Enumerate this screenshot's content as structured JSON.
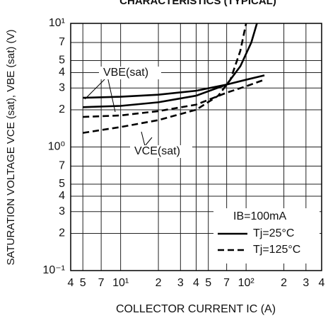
{
  "chart_data": {
    "type": "line",
    "title": "CHARACTERISTICS (TYPICAL)",
    "x_label": "COLLECTOR CURRENT   IC (A)",
    "y_label": "SATURATION VOLTAGE   VCE (sat),  VBE (sat)  (V)",
    "log_x": true,
    "log_y": true,
    "grid": true,
    "xlim": [
      4,
      400
    ],
    "xticks": [
      4,
      5,
      7,
      {
        "value": 10,
        "label": "10¹"
      },
      20,
      30,
      40,
      50,
      70,
      {
        "value": 100,
        "label": "10²"
      },
      200,
      300,
      400
    ],
    "xtick_labels": [
      "4",
      "5",
      "7",
      "10¹",
      "2",
      "3",
      "4",
      "5",
      "7",
      "10²",
      "2",
      "3",
      "4"
    ],
    "ylim": [
      0.1,
      10
    ],
    "yticks": [
      {
        "value": 0.1,
        "label": "10⁻¹"
      },
      0.2,
      0.3,
      0.4,
      0.5,
      0.7,
      {
        "value": 1,
        "label": "10⁰"
      },
      2,
      3,
      4,
      5,
      7,
      {
        "value": 10,
        "label": "10¹"
      }
    ],
    "ytick_labels": [
      "10⁻¹",
      "2",
      "3",
      "4",
      "5",
      "7",
      "10⁰",
      "2",
      "3",
      "4",
      "5",
      "7",
      "10¹"
    ],
    "annotations": [
      "VBE(sat)",
      "VCE(sat)"
    ],
    "legend_title": "IB=100mA",
    "legend": "lower right",
    "series": [
      {
        "name": "Tj=25°C",
        "color": "#000000",
        "dash": "solid",
        "x": [
          5,
          10,
          20,
          40,
          70,
          100,
          140
        ],
        "values": [
          2.5,
          2.55,
          2.65,
          2.85,
          3.2,
          3.5,
          3.8
        ]
      },
      {
        "name": "Tj=125°C",
        "color": "#000000",
        "dash": "dashed",
        "x": [
          5,
          10,
          20,
          40,
          70,
          100,
          140
        ],
        "values": [
          1.75,
          1.8,
          1.95,
          2.2,
          2.75,
          3.1,
          3.5
        ]
      },
      {
        "name": "Tj=25°C",
        "color": "#000000",
        "dash": "solid",
        "x": [
          5,
          10,
          20,
          40,
          70,
          90,
          110,
          122
        ],
        "values": [
          2.1,
          2.15,
          2.3,
          2.6,
          3.2,
          4.5,
          7,
          10
        ]
      },
      {
        "name": "Tj=125°C",
        "color": "#000000",
        "dash": "dashed",
        "x": [
          5,
          10,
          20,
          40,
          60,
          75,
          90,
          100
        ],
        "values": [
          1.3,
          1.45,
          1.65,
          2.0,
          2.6,
          3.5,
          6,
          10
        ]
      }
    ]
  }
}
